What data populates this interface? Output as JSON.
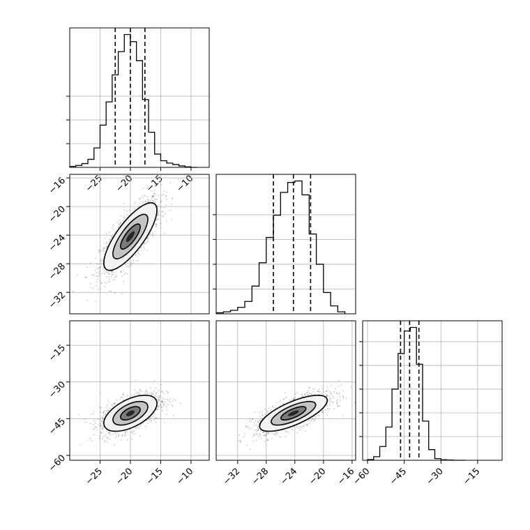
{
  "chart_data": {
    "type": "corner",
    "colors": {
      "line": "#000000",
      "grid": "#b0b0b0",
      "points": "#000000"
    },
    "quantiles": [
      0.16,
      0.5,
      0.84
    ],
    "panels": [
      {
        "id": "hist-p0",
        "type": "histogram",
        "row": 0,
        "col": 0,
        "xlim": [
          -30,
          -7
        ],
        "bin_edges": [
          -30.0,
          -29.0,
          -28.0,
          -27.0,
          -26.0,
          -25.0,
          -24.0,
          -23.0,
          -22.0,
          -21.0,
          -20.0,
          -19.0,
          -18.0,
          -17.0,
          -16.0,
          -15.0,
          -14.0,
          -13.0,
          -12.0,
          -11.0,
          -10.0,
          -9.0
        ],
        "counts": [
          2,
          4,
          8,
          17,
          41,
          89,
          138,
          195,
          244,
          280,
          265,
          225,
          143,
          74,
          28,
          14,
          9,
          6,
          3,
          1,
          0
        ],
        "quantile_values": [
          -22.5,
          -20.0,
          -17.6
        ],
        "x_ticks": [
          -25,
          -20,
          -15,
          -10
        ],
        "x_tick_labels": [
          "−25",
          "−20",
          "−15",
          "−10"
        ],
        "y_ticks": [
          50,
          100,
          150
        ]
      },
      {
        "id": "hist-p1",
        "type": "histogram",
        "row": 1,
        "col": 1,
        "xlim": [
          -35,
          -15.5
        ],
        "bin_edges": [
          -35.0,
          -34.0,
          -33.0,
          -32.0,
          -31.0,
          -30.0,
          -29.0,
          -28.0,
          -27.0,
          -26.0,
          -25.0,
          -24.0,
          -23.0,
          -22.0,
          -21.0,
          -20.0,
          -19.0,
          -18.0,
          -17.0
        ],
        "counts": [
          2,
          4,
          7,
          13,
          25,
          56,
          103,
          154,
          199,
          245,
          265,
          268,
          240,
          161,
          100,
          43,
          16,
          4
        ],
        "quantile_values": [
          -27.0,
          -24.2,
          -21.8
        ],
        "y_ticks": [
          50,
          100,
          150,
          200
        ]
      },
      {
        "id": "hist-p2",
        "type": "histogram",
        "row": 2,
        "col": 2,
        "xlim": [
          -62,
          -5
        ],
        "bin_edges": [
          -60.0,
          -57.5,
          -55.0,
          -52.5,
          -50.0,
          -47.5,
          -45.0,
          -42.5,
          -40.0,
          -37.5,
          -35.0,
          -32.5,
          -30.0,
          -27.5,
          -25.0,
          -22.5,
          -20.0
        ],
        "counts": [
          3,
          15,
          58,
          140,
          300,
          450,
          545,
          560,
          405,
          165,
          45,
          7,
          2,
          1,
          0,
          0
        ],
        "quantile_values": [
          -46.5,
          -42.8,
          -39.0
        ],
        "x_ticks": [
          -60,
          -45,
          -30,
          -15
        ],
        "x_tick_labels": [
          "−60",
          "−45",
          "−30",
          "−15"
        ],
        "y_ticks": [
          100,
          200,
          300,
          400,
          500
        ]
      },
      {
        "id": "density-p1-vs-p0",
        "type": "density2d",
        "row": 1,
        "col": 0,
        "xlim": [
          -30,
          -7
        ],
        "ylim": [
          -35,
          -15.5
        ],
        "mean": [
          -20.0,
          -24.2
        ],
        "std": [
          2.5,
          2.7
        ],
        "corr": 0.78,
        "y_ticks": [
          -32,
          -28,
          -24,
          -20,
          -16
        ],
        "y_tick_labels": [
          "−32",
          "−28",
          "−24",
          "−20",
          "−16"
        ]
      },
      {
        "id": "density-p2-vs-p0",
        "type": "density2d",
        "row": 2,
        "col": 0,
        "xlim": [
          -30,
          -7
        ],
        "ylim": [
          -62,
          -5
        ],
        "mean": [
          -20.0,
          -42.8
        ],
        "std": [
          2.5,
          4.2
        ],
        "corr": 0.55,
        "y_ticks": [
          -60,
          -45,
          -30,
          -15
        ],
        "y_tick_labels": [
          "−60",
          "−45",
          "−30",
          "−15"
        ]
      },
      {
        "id": "density-p2-vs-p1",
        "type": "density2d",
        "row": 2,
        "col": 1,
        "xlim": [
          -35,
          -15.5
        ],
        "ylim": [
          -62,
          -5
        ],
        "mean": [
          -24.2,
          -42.8
        ],
        "std": [
          2.7,
          4.2
        ],
        "corr": 0.72,
        "x_ticks": [
          -32,
          -28,
          -24,
          -20,
          -16
        ],
        "x_tick_labels": [
          "−32",
          "−28",
          "−24",
          "−20",
          "−16"
        ]
      }
    ]
  }
}
